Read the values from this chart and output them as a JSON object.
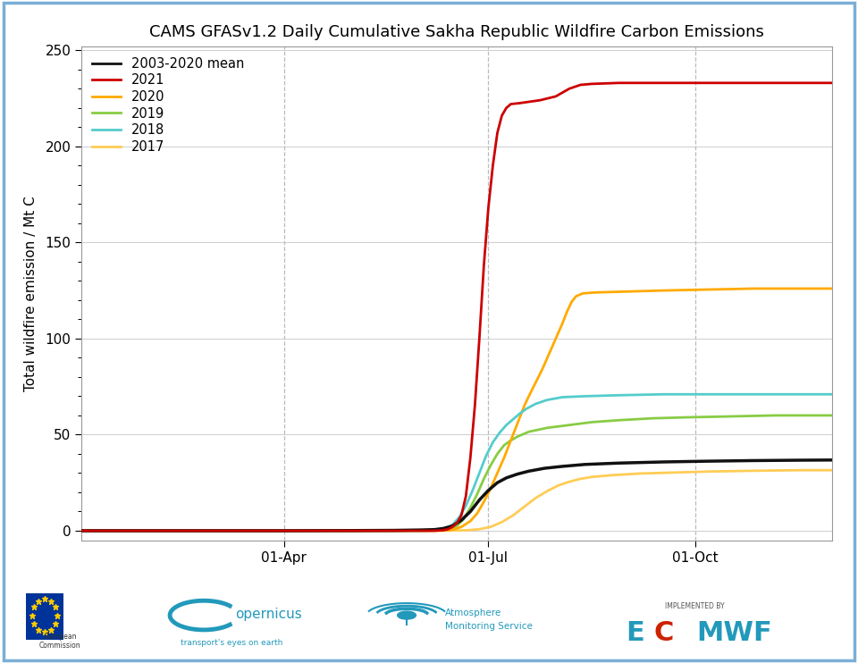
{
  "title": "CAMS GFASv1.2 Daily Cumulative Sakha Republic Wildfire Carbon Emissions",
  "ylabel": "Total wildfire emission / Mt C",
  "ylim": [
    -5,
    252
  ],
  "yticks": [
    0,
    50,
    100,
    150,
    200,
    250
  ],
  "xlim": [
    1,
    335
  ],
  "background_color": "#ffffff",
  "border_color": "#7aaed6",
  "grid_color": "#bbbbbb",
  "series": [
    {
      "label": "2003-2020 mean",
      "color": "#111111",
      "linewidth": 2.5,
      "zorder": 5,
      "data_points": [
        [
          1,
          0
        ],
        [
          60,
          0
        ],
        [
          91,
          0
        ],
        [
          121,
          0.1
        ],
        [
          140,
          0.2
        ],
        [
          152,
          0.4
        ],
        [
          158,
          0.6
        ],
        [
          162,
          1.2
        ],
        [
          166,
          2.5
        ],
        [
          170,
          5.5
        ],
        [
          174,
          10.0
        ],
        [
          178,
          16.0
        ],
        [
          182,
          21.0
        ],
        [
          186,
          25.0
        ],
        [
          190,
          27.5
        ],
        [
          195,
          29.5
        ],
        [
          200,
          31.0
        ],
        [
          207,
          32.5
        ],
        [
          215,
          33.5
        ],
        [
          225,
          34.5
        ],
        [
          240,
          35.2
        ],
        [
          260,
          35.8
        ],
        [
          280,
          36.2
        ],
        [
          300,
          36.5
        ],
        [
          320,
          36.7
        ],
        [
          335,
          36.8
        ]
      ]
    },
    {
      "label": "2021",
      "color": "#cc0000",
      "linewidth": 2.0,
      "zorder": 6,
      "data_points": [
        [
          1,
          0
        ],
        [
          91,
          0
        ],
        [
          152,
          0
        ],
        [
          158,
          0.0
        ],
        [
          162,
          0.3
        ],
        [
          164,
          0.8
        ],
        [
          166,
          2.0
        ],
        [
          168,
          4.0
        ],
        [
          170,
          8.0
        ],
        [
          172,
          18.0
        ],
        [
          174,
          38.0
        ],
        [
          176,
          65.0
        ],
        [
          178,
          100.0
        ],
        [
          180,
          138.0
        ],
        [
          182,
          168.0
        ],
        [
          184,
          190.0
        ],
        [
          186,
          207.0
        ],
        [
          188,
          216.0
        ],
        [
          190,
          220.0
        ],
        [
          192,
          222.0
        ],
        [
          196,
          222.5
        ],
        [
          205,
          224.0
        ],
        [
          212,
          226.0
        ],
        [
          218,
          230.0
        ],
        [
          223,
          232.0
        ],
        [
          228,
          232.5
        ],
        [
          240,
          233.0
        ],
        [
          260,
          233.0
        ],
        [
          280,
          233.0
        ],
        [
          300,
          233.0
        ],
        [
          320,
          233.0
        ],
        [
          335,
          233.0
        ]
      ]
    },
    {
      "label": "2020",
      "color": "#ffaa00",
      "linewidth": 2.0,
      "zorder": 4,
      "data_points": [
        [
          1,
          0
        ],
        [
          91,
          0
        ],
        [
          152,
          0
        ],
        [
          162,
          0.1
        ],
        [
          166,
          0.5
        ],
        [
          170,
          2.0
        ],
        [
          174,
          5.0
        ],
        [
          177,
          9.0
        ],
        [
          180,
          15.0
        ],
        [
          183,
          22.0
        ],
        [
          186,
          30.0
        ],
        [
          189,
          38.0
        ],
        [
          192,
          47.0
        ],
        [
          195,
          56.0
        ],
        [
          198,
          65.0
        ],
        [
          200,
          70.0
        ],
        [
          203,
          77.0
        ],
        [
          206,
          84.0
        ],
        [
          209,
          92.0
        ],
        [
          212,
          100.0
        ],
        [
          215,
          108.0
        ],
        [
          217,
          114.0
        ],
        [
          219,
          119.0
        ],
        [
          221,
          122.0
        ],
        [
          224,
          123.5
        ],
        [
          230,
          124.0
        ],
        [
          245,
          124.5
        ],
        [
          260,
          125.0
        ],
        [
          280,
          125.5
        ],
        [
          300,
          126.0
        ],
        [
          335,
          126.0
        ]
      ]
    },
    {
      "label": "2019",
      "color": "#88cc44",
      "linewidth": 2.0,
      "zorder": 3,
      "data_points": [
        [
          1,
          0
        ],
        [
          91,
          0
        ],
        [
          152,
          0
        ],
        [
          162,
          0.2
        ],
        [
          165,
          0.8
        ],
        [
          168,
          2.5
        ],
        [
          171,
          6.0
        ],
        [
          174,
          12.0
        ],
        [
          177,
          19.0
        ],
        [
          180,
          27.0
        ],
        [
          183,
          34.0
        ],
        [
          186,
          40.0
        ],
        [
          189,
          44.5
        ],
        [
          192,
          47.0
        ],
        [
          195,
          49.0
        ],
        [
          200,
          51.5
        ],
        [
          208,
          53.5
        ],
        [
          218,
          55.0
        ],
        [
          228,
          56.5
        ],
        [
          240,
          57.5
        ],
        [
          255,
          58.5
        ],
        [
          270,
          59.0
        ],
        [
          290,
          59.5
        ],
        [
          310,
          60.0
        ],
        [
          335,
          60.0
        ]
      ]
    },
    {
      "label": "2018",
      "color": "#55cccc",
      "linewidth": 2.0,
      "zorder": 4,
      "data_points": [
        [
          1,
          0
        ],
        [
          91,
          0
        ],
        [
          152,
          0
        ],
        [
          160,
          0.3
        ],
        [
          163,
          1.0
        ],
        [
          166,
          3.0
        ],
        [
          169,
          7.0
        ],
        [
          172,
          13.0
        ],
        [
          175,
          21.0
        ],
        [
          178,
          30.0
        ],
        [
          181,
          39.0
        ],
        [
          184,
          46.0
        ],
        [
          187,
          51.0
        ],
        [
          190,
          55.0
        ],
        [
          193,
          58.0
        ],
        [
          196,
          61.0
        ],
        [
          199,
          63.5
        ],
        [
          203,
          66.0
        ],
        [
          208,
          68.0
        ],
        [
          215,
          69.5
        ],
        [
          225,
          70.0
        ],
        [
          240,
          70.5
        ],
        [
          260,
          71.0
        ],
        [
          280,
          71.0
        ],
        [
          300,
          71.0
        ],
        [
          320,
          71.0
        ],
        [
          335,
          71.0
        ]
      ]
    },
    {
      "label": "2017",
      "color": "#ffcc55",
      "linewidth": 2.0,
      "zorder": 2,
      "data_points": [
        [
          1,
          0
        ],
        [
          91,
          0
        ],
        [
          152,
          0
        ],
        [
          168,
          0.1
        ],
        [
          173,
          0.3
        ],
        [
          178,
          0.8
        ],
        [
          183,
          2.0
        ],
        [
          188,
          4.5
        ],
        [
          193,
          8.0
        ],
        [
          198,
          12.5
        ],
        [
          203,
          17.0
        ],
        [
          208,
          20.5
        ],
        [
          213,
          23.5
        ],
        [
          218,
          25.5
        ],
        [
          223,
          27.0
        ],
        [
          228,
          28.0
        ],
        [
          238,
          29.0
        ],
        [
          250,
          29.8
        ],
        [
          265,
          30.3
        ],
        [
          280,
          30.8
        ],
        [
          300,
          31.2
        ],
        [
          320,
          31.5
        ],
        [
          335,
          31.5
        ]
      ]
    }
  ],
  "xtick_labels": [
    "01-Apr",
    "01-Jul",
    "01-Oct"
  ],
  "xtick_days": [
    91,
    182,
    274
  ],
  "title_fontsize": 13,
  "tick_fontsize": 11,
  "ylabel_fontsize": 11,
  "legend_fontsize": 10.5
}
